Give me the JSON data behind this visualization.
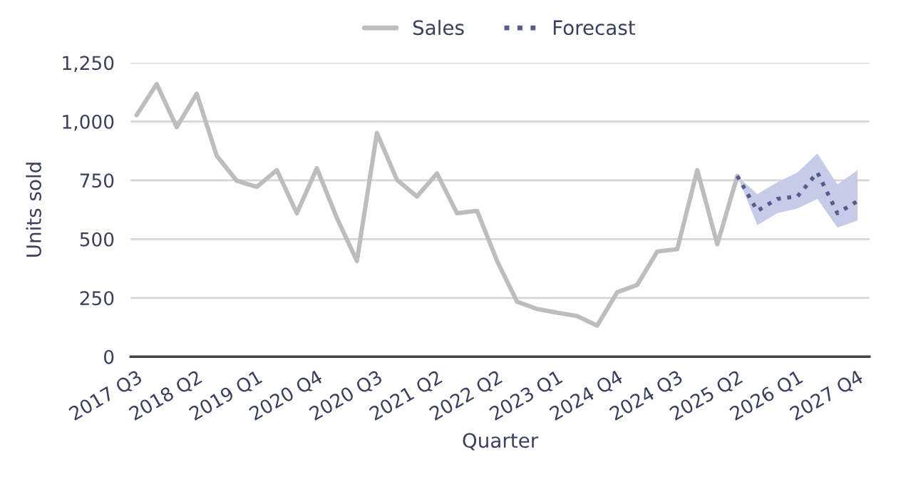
{
  "chart_data": {
    "type": "line",
    "xlabel": "Quarter",
    "ylabel": "Units sold",
    "categories": [
      "2017 Q3",
      null,
      null,
      "2018 Q2",
      null,
      null,
      "2019 Q1",
      null,
      null,
      "2020 Q4",
      null,
      null,
      "2020 Q3",
      null,
      null,
      "2021 Q2",
      null,
      null,
      "2022 Q2",
      null,
      null,
      "2023 Q1",
      null,
      null,
      "2024 Q4",
      null,
      null,
      "2024 Q3",
      null,
      null,
      "2025 Q2",
      null,
      null,
      "2026 Q1",
      null,
      null,
      "2027 Q4"
    ],
    "series": [
      {
        "name": "Sales",
        "color": "#bdbdbd",
        "line_style": "solid",
        "values": [
          1027,
          1159,
          976,
          1118,
          854,
          748,
          722,
          793,
          610,
          801,
          590,
          407,
          951,
          752,
          681,
          779,
          610,
          620,
          407,
          234,
          203,
          187,
          173,
          132,
          274,
          305,
          447,
          457,
          793,
          478,
          768,
          null,
          null,
          null,
          null,
          null,
          null
        ]
      },
      {
        "name": "Forecast",
        "color": "#565c8c",
        "line_style": "dotted",
        "values": [
          null,
          null,
          null,
          null,
          null,
          null,
          null,
          null,
          null,
          null,
          null,
          null,
          null,
          null,
          null,
          null,
          null,
          null,
          null,
          null,
          null,
          null,
          null,
          null,
          null,
          null,
          null,
          null,
          null,
          null,
          768,
          620,
          671,
          681,
          783,
          610,
          661
        ],
        "lower": [
          null,
          null,
          null,
          null,
          null,
          null,
          null,
          null,
          null,
          null,
          null,
          null,
          null,
          null,
          null,
          null,
          null,
          null,
          null,
          null,
          null,
          null,
          null,
          null,
          null,
          null,
          null,
          null,
          null,
          null,
          768,
          559,
          610,
          630,
          671,
          549,
          579
        ],
        "upper": [
          null,
          null,
          null,
          null,
          null,
          null,
          null,
          null,
          null,
          null,
          null,
          null,
          null,
          null,
          null,
          null,
          null,
          null,
          null,
          null,
          null,
          null,
          null,
          null,
          null,
          null,
          null,
          null,
          null,
          null,
          768,
          691,
          742,
          783,
          864,
          732,
          793
        ]
      }
    ],
    "ylim": [
      0,
      1250
    ],
    "yticks": [
      0,
      250,
      500,
      750,
      {
        "value": 1000,
        "label": "1,000"
      },
      {
        "value": 1250,
        "label": "1,250"
      }
    ],
    "grid": "y",
    "legend": "top",
    "marker": "none"
  }
}
